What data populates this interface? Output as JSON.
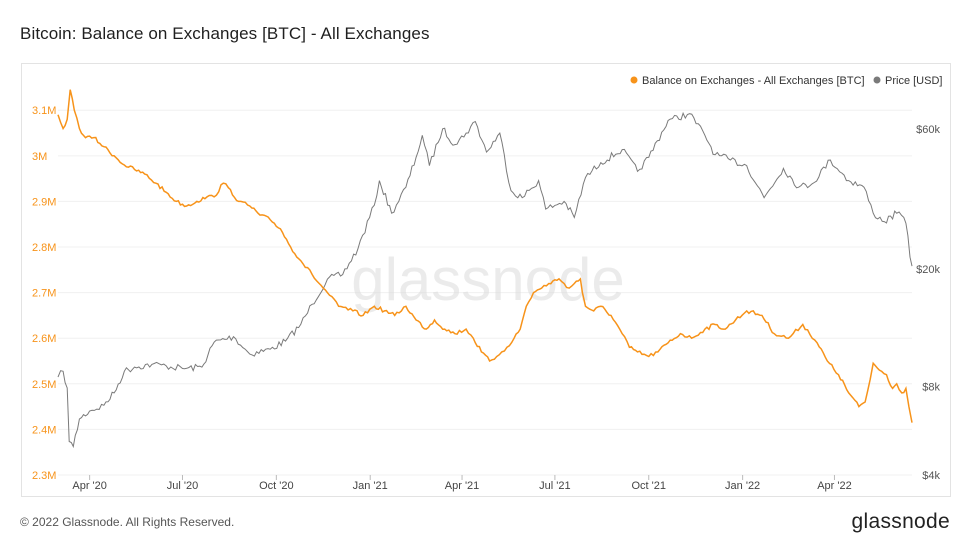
{
  "page": {
    "title": "Bitcoin: Balance on Exchanges [BTC] - All Exchanges",
    "watermark": "glassnode",
    "footer_copyright": "© 2022 Glassnode. All Rights Reserved.",
    "footer_logo": "glassnode"
  },
  "chart_data": {
    "type": "line",
    "title": "Bitcoin: Balance on Exchanges [BTC] - All Exchanges",
    "legend_position": "top-right",
    "grid": true,
    "colors": {
      "balance": "#f7931a",
      "price": "#7a7a7a"
    },
    "x_ticks": [
      "Apr '20",
      "Jul '20",
      "Oct '20",
      "Jan '21",
      "Apr '21",
      "Jul '21",
      "Oct '21",
      "Jan '22",
      "Apr '22"
    ],
    "x_tick_dates": [
      "2020-04-01",
      "2020-07-01",
      "2020-10-01",
      "2021-01-01",
      "2021-04-01",
      "2021-07-01",
      "2021-10-01",
      "2022-01-01",
      "2022-04-01"
    ],
    "x_range": [
      "2020-03-01",
      "2022-06-16"
    ],
    "y_left": {
      "label": "Balance on Exchanges - All Exchanges [BTC]",
      "ticks": [
        2.3,
        2.4,
        2.5,
        2.6,
        2.7,
        2.8,
        2.9,
        3.0,
        3.1
      ],
      "tick_labels": [
        "2.3M",
        "2.4M",
        "2.5M",
        "2.6M",
        "2.7M",
        "2.8M",
        "2.9M",
        "3M",
        "3.1M"
      ],
      "range_millions": [
        2.3,
        3.14
      ]
    },
    "y_right": {
      "label": "Price [USD]",
      "scale": "log",
      "ticks": [
        4000,
        8000,
        20000,
        60000
      ],
      "tick_labels": [
        "$4k",
        "$8k",
        "$20k",
        "$60k"
      ],
      "range": [
        4000,
        80000
      ]
    },
    "series": [
      {
        "name": "Balance on Exchanges - All Exchanges [BTC]",
        "axis": "left",
        "unit": "millions BTC",
        "points": [
          [
            "2020-03-01",
            3.09
          ],
          [
            "2020-03-06",
            3.06
          ],
          [
            "2020-03-10",
            3.08
          ],
          [
            "2020-03-13",
            3.145
          ],
          [
            "2020-03-17",
            3.1
          ],
          [
            "2020-03-22",
            3.06
          ],
          [
            "2020-03-28",
            3.04
          ],
          [
            "2020-04-05",
            3.04
          ],
          [
            "2020-04-15",
            3.02
          ],
          [
            "2020-04-25",
            3.0
          ],
          [
            "2020-05-05",
            2.98
          ],
          [
            "2020-05-15",
            2.97
          ],
          [
            "2020-05-25",
            2.96
          ],
          [
            "2020-06-05",
            2.94
          ],
          [
            "2020-06-15",
            2.92
          ],
          [
            "2020-06-25",
            2.9
          ],
          [
            "2020-07-05",
            2.89
          ],
          [
            "2020-07-15",
            2.9
          ],
          [
            "2020-07-25",
            2.91
          ],
          [
            "2020-08-01",
            2.91
          ],
          [
            "2020-08-10",
            2.94
          ],
          [
            "2020-08-15",
            2.93
          ],
          [
            "2020-08-25",
            2.9
          ],
          [
            "2020-09-05",
            2.89
          ],
          [
            "2020-09-15",
            2.87
          ],
          [
            "2020-09-25",
            2.86
          ],
          [
            "2020-10-05",
            2.84
          ],
          [
            "2020-10-15",
            2.8
          ],
          [
            "2020-10-25",
            2.77
          ],
          [
            "2020-11-05",
            2.74
          ],
          [
            "2020-11-12",
            2.72
          ],
          [
            "2020-11-20",
            2.7
          ],
          [
            "2020-12-01",
            2.67
          ],
          [
            "2020-12-15",
            2.66
          ],
          [
            "2020-12-25",
            2.65
          ],
          [
            "2021-01-05",
            2.67
          ],
          [
            "2021-01-15",
            2.66
          ],
          [
            "2021-01-25",
            2.65
          ],
          [
            "2021-02-05",
            2.67
          ],
          [
            "2021-02-15",
            2.64
          ],
          [
            "2021-02-25",
            2.62
          ],
          [
            "2021-03-05",
            2.64
          ],
          [
            "2021-03-15",
            2.62
          ],
          [
            "2021-03-25",
            2.61
          ],
          [
            "2021-04-05",
            2.62
          ],
          [
            "2021-04-12",
            2.6
          ],
          [
            "2021-04-20",
            2.57
          ],
          [
            "2021-04-28",
            2.55
          ],
          [
            "2021-05-05",
            2.56
          ],
          [
            "2021-05-10",
            2.57
          ],
          [
            "2021-05-15",
            2.58
          ],
          [
            "2021-05-22",
            2.6
          ],
          [
            "2021-05-28",
            2.62
          ],
          [
            "2021-06-03",
            2.67
          ],
          [
            "2021-06-10",
            2.7
          ],
          [
            "2021-06-18",
            2.71
          ],
          [
            "2021-06-25",
            2.72
          ],
          [
            "2021-07-05",
            2.73
          ],
          [
            "2021-07-10",
            2.72
          ],
          [
            "2021-07-15",
            2.71
          ],
          [
            "2021-07-20",
            2.72
          ],
          [
            "2021-07-26",
            2.73
          ],
          [
            "2021-07-28",
            2.7
          ],
          [
            "2021-07-31",
            2.67
          ],
          [
            "2021-08-08",
            2.66
          ],
          [
            "2021-08-15",
            2.67
          ],
          [
            "2021-08-25",
            2.65
          ],
          [
            "2021-09-05",
            2.61
          ],
          [
            "2021-09-12",
            2.58
          ],
          [
            "2021-09-20",
            2.57
          ],
          [
            "2021-10-01",
            2.56
          ],
          [
            "2021-10-10",
            2.57
          ],
          [
            "2021-10-20",
            2.59
          ],
          [
            "2021-11-01",
            2.61
          ],
          [
            "2021-11-12",
            2.6
          ],
          [
            "2021-11-25",
            2.62
          ],
          [
            "2021-12-05",
            2.63
          ],
          [
            "2021-12-15",
            2.62
          ],
          [
            "2021-12-25",
            2.64
          ],
          [
            "2022-01-05",
            2.66
          ],
          [
            "2022-01-20",
            2.65
          ],
          [
            "2022-02-01",
            2.61
          ],
          [
            "2022-02-15",
            2.6
          ],
          [
            "2022-03-01",
            2.63
          ],
          [
            "2022-03-15",
            2.59
          ],
          [
            "2022-03-25",
            2.55
          ],
          [
            "2022-04-05",
            2.52
          ],
          [
            "2022-04-15",
            2.48
          ],
          [
            "2022-04-25",
            2.45
          ],
          [
            "2022-05-01",
            2.46
          ],
          [
            "2022-05-06",
            2.51
          ],
          [
            "2022-05-09",
            2.545
          ],
          [
            "2022-05-15",
            2.53
          ],
          [
            "2022-05-22",
            2.52
          ],
          [
            "2022-05-28",
            2.49
          ],
          [
            "2022-06-01",
            2.5
          ],
          [
            "2022-06-06",
            2.48
          ],
          [
            "2022-06-10",
            2.49
          ],
          [
            "2022-06-13",
            2.45
          ],
          [
            "2022-06-16",
            2.415
          ]
        ]
      },
      {
        "name": "Price [USD]",
        "axis": "right",
        "unit": "USD",
        "points": [
          [
            "2020-03-01",
            8600
          ],
          [
            "2020-03-06",
            9000
          ],
          [
            "2020-03-10",
            7900
          ],
          [
            "2020-03-12",
            5200
          ],
          [
            "2020-03-16",
            5000
          ],
          [
            "2020-03-22",
            6200
          ],
          [
            "2020-04-01",
            6600
          ],
          [
            "2020-04-15",
            6900
          ],
          [
            "2020-04-25",
            7600
          ],
          [
            "2020-05-05",
            9000
          ],
          [
            "2020-05-15",
            9300
          ],
          [
            "2020-06-01",
            9500
          ],
          [
            "2020-06-15",
            9400
          ],
          [
            "2020-07-01",
            9200
          ],
          [
            "2020-07-20",
            9300
          ],
          [
            "2020-08-01",
            11300
          ],
          [
            "2020-08-20",
            11800
          ],
          [
            "2020-09-05",
            10300
          ],
          [
            "2020-09-25",
            10700
          ],
          [
            "2020-10-10",
            11400
          ],
          [
            "2020-10-25",
            13000
          ],
          [
            "2020-11-05",
            15200
          ],
          [
            "2020-11-20",
            18500
          ],
          [
            "2020-12-05",
            19200
          ],
          [
            "2020-12-20",
            23500
          ],
          [
            "2021-01-05",
            33000
          ],
          [
            "2021-01-10",
            40000
          ],
          [
            "2021-01-22",
            31000
          ],
          [
            "2021-02-05",
            38000
          ],
          [
            "2021-02-15",
            48000
          ],
          [
            "2021-02-21",
            57000
          ],
          [
            "2021-02-28",
            45000
          ],
          [
            "2021-03-13",
            60000
          ],
          [
            "2021-03-25",
            53000
          ],
          [
            "2021-04-05",
            58000
          ],
          [
            "2021-04-14",
            63500
          ],
          [
            "2021-04-25",
            50000
          ],
          [
            "2021-05-08",
            58000
          ],
          [
            "2021-05-19",
            37000
          ],
          [
            "2021-05-30",
            35000
          ],
          [
            "2021-06-15",
            40000
          ],
          [
            "2021-06-22",
            32000
          ],
          [
            "2021-07-10",
            34000
          ],
          [
            "2021-07-20",
            30000
          ],
          [
            "2021-07-31",
            41000
          ],
          [
            "2021-08-15",
            46000
          ],
          [
            "2021-09-05",
            51000
          ],
          [
            "2021-09-20",
            43000
          ],
          [
            "2021-10-01",
            48000
          ],
          [
            "2021-10-20",
            64000
          ],
          [
            "2021-11-10",
            67500
          ],
          [
            "2021-11-25",
            57000
          ],
          [
            "2021-12-05",
            49000
          ],
          [
            "2021-12-20",
            47000
          ],
          [
            "2022-01-05",
            45000
          ],
          [
            "2022-01-22",
            35000
          ],
          [
            "2022-02-10",
            44000
          ],
          [
            "2022-02-25",
            38000
          ],
          [
            "2022-03-10",
            39000
          ],
          [
            "2022-03-28",
            47000
          ],
          [
            "2022-04-15",
            40000
          ],
          [
            "2022-04-30",
            38000
          ],
          [
            "2022-05-09",
            31000
          ],
          [
            "2022-05-20",
            29000
          ],
          [
            "2022-06-01",
            31000
          ],
          [
            "2022-06-08",
            30000
          ],
          [
            "2022-06-12",
            26000
          ],
          [
            "2022-06-14",
            22000
          ],
          [
            "2022-06-16",
            20500
          ]
        ]
      }
    ]
  }
}
